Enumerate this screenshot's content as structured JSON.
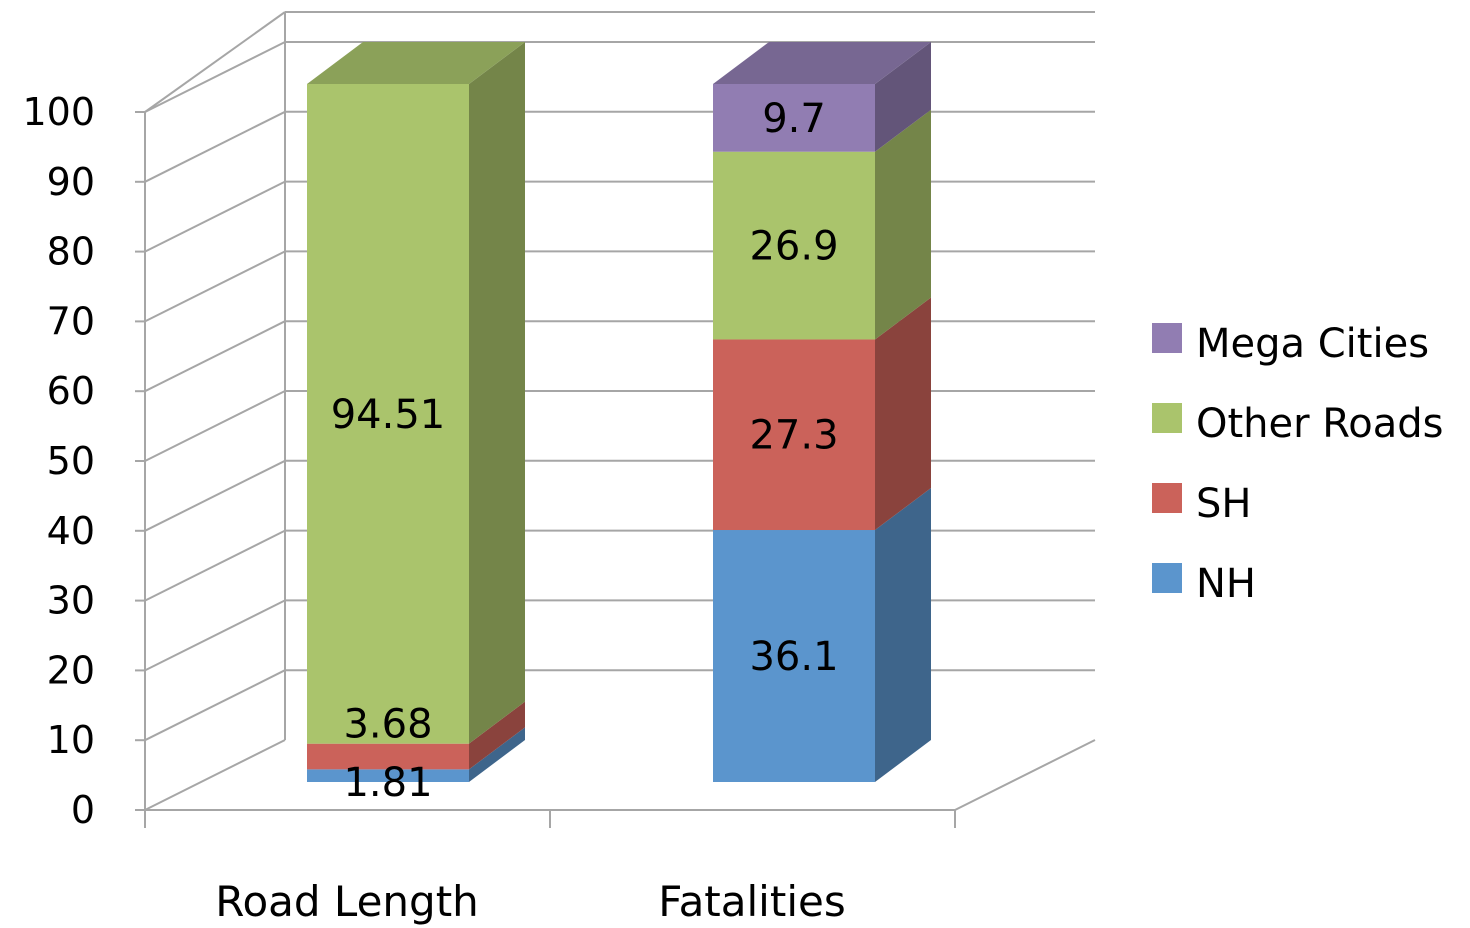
{
  "chart_data": {
    "type": "bar",
    "stacked": true,
    "three_d": true,
    "categories": [
      "Road Length",
      "Fatalities"
    ],
    "series": [
      {
        "name": "NH",
        "values": [
          1.81,
          36.1
        ],
        "labels": [
          "1.81",
          "36.1"
        ],
        "color": "#5B95CD"
      },
      {
        "name": "SH",
        "values": [
          3.68,
          27.3
        ],
        "labels": [
          "3.68",
          "27.3"
        ],
        "color": "#CB625A"
      },
      {
        "name": "Other Roads",
        "values": [
          94.51,
          26.9
        ],
        "labels": [
          "94.51",
          "26.9"
        ],
        "color": "#AAC46C"
      },
      {
        "name": "Mega Cities",
        "values": [
          0,
          9.7
        ],
        "labels": [
          "",
          "9.7"
        ],
        "color": "#917DB2"
      }
    ],
    "y_ticks": [
      "0",
      "10",
      "20",
      "30",
      "40",
      "50",
      "60",
      "70",
      "80",
      "90",
      "100"
    ],
    "ylim": [
      0,
      100
    ],
    "grid": true,
    "legend": {
      "position": "right",
      "order": [
        "Mega Cities",
        "Other Roads",
        "SH",
        "NH"
      ]
    },
    "title": "",
    "xlabel": "",
    "ylabel": ""
  }
}
